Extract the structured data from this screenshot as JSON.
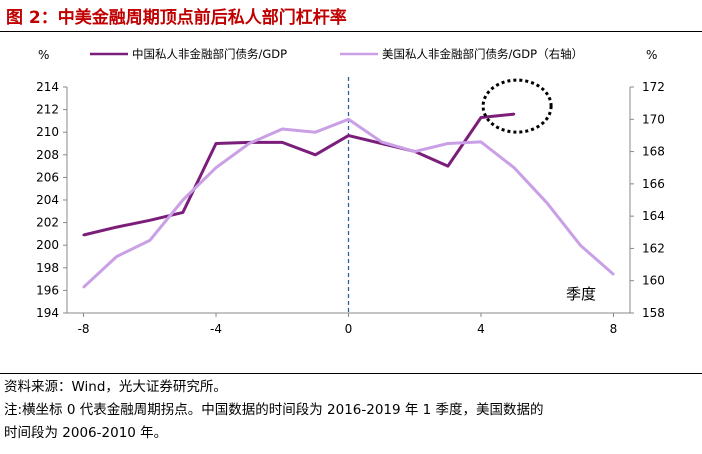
{
  "header": {
    "title": "图 2：中美金融周期顶点前后私人部门杠杆率"
  },
  "footer": {
    "source": "资料来源：Wind，光大证券研究所。",
    "note_line1": "注:横坐标 0 代表金融周期拐点。中国数据的时间段为 2016-2019 年 1 季度，美国数据的",
    "note_line2": "时间段为 2006-2010 年。"
  },
  "chart_data": {
    "type": "line",
    "xlabel": "季度",
    "left_axis": {
      "unit": "%",
      "ylim": [
        194,
        214
      ],
      "ticks": [
        194,
        196,
        198,
        200,
        202,
        204,
        206,
        208,
        210,
        212,
        214
      ]
    },
    "right_axis": {
      "unit": "%",
      "ylim": [
        158,
        172
      ],
      "ticks": [
        158,
        160,
        162,
        164,
        166,
        168,
        170,
        172
      ]
    },
    "x_ticks": [
      -8,
      -4,
      0,
      4,
      8
    ],
    "xlim": [
      -8.5,
      8.5
    ],
    "vline_x": 0,
    "legend_placement": "top",
    "series": [
      {
        "name": "中国私人非金融部门债务/GDP",
        "axis": "left",
        "color": "#7b1e7a",
        "x": [
          -8,
          -7,
          -6,
          -5,
          -4,
          -3,
          -2,
          -1,
          0,
          1,
          2,
          3,
          4,
          5
        ],
        "values": [
          200.9,
          201.6,
          202.2,
          202.9,
          209.0,
          209.1,
          209.1,
          208.0,
          209.7,
          209.0,
          208.3,
          207.0,
          211.3,
          211.6
        ]
      },
      {
        "name": "美国私人非金融部门债务/GDP（右轴）",
        "axis": "right",
        "color": "#c9a0e6",
        "x": [
          -8,
          -7,
          -6,
          -5,
          -4,
          -3,
          -2,
          -1,
          0,
          1,
          2,
          3,
          4,
          5,
          6,
          7,
          8
        ],
        "values": [
          159.6,
          161.5,
          162.5,
          165.0,
          167.0,
          168.5,
          169.4,
          169.2,
          170.0,
          168.6,
          168.0,
          168.5,
          168.6,
          167.0,
          164.8,
          162.2,
          160.4
        ]
      }
    ],
    "annotation": {
      "type": "dotted-ellipse",
      "around_series": "中国私人非金融部门债务/GDP",
      "around_x": 5
    }
  }
}
